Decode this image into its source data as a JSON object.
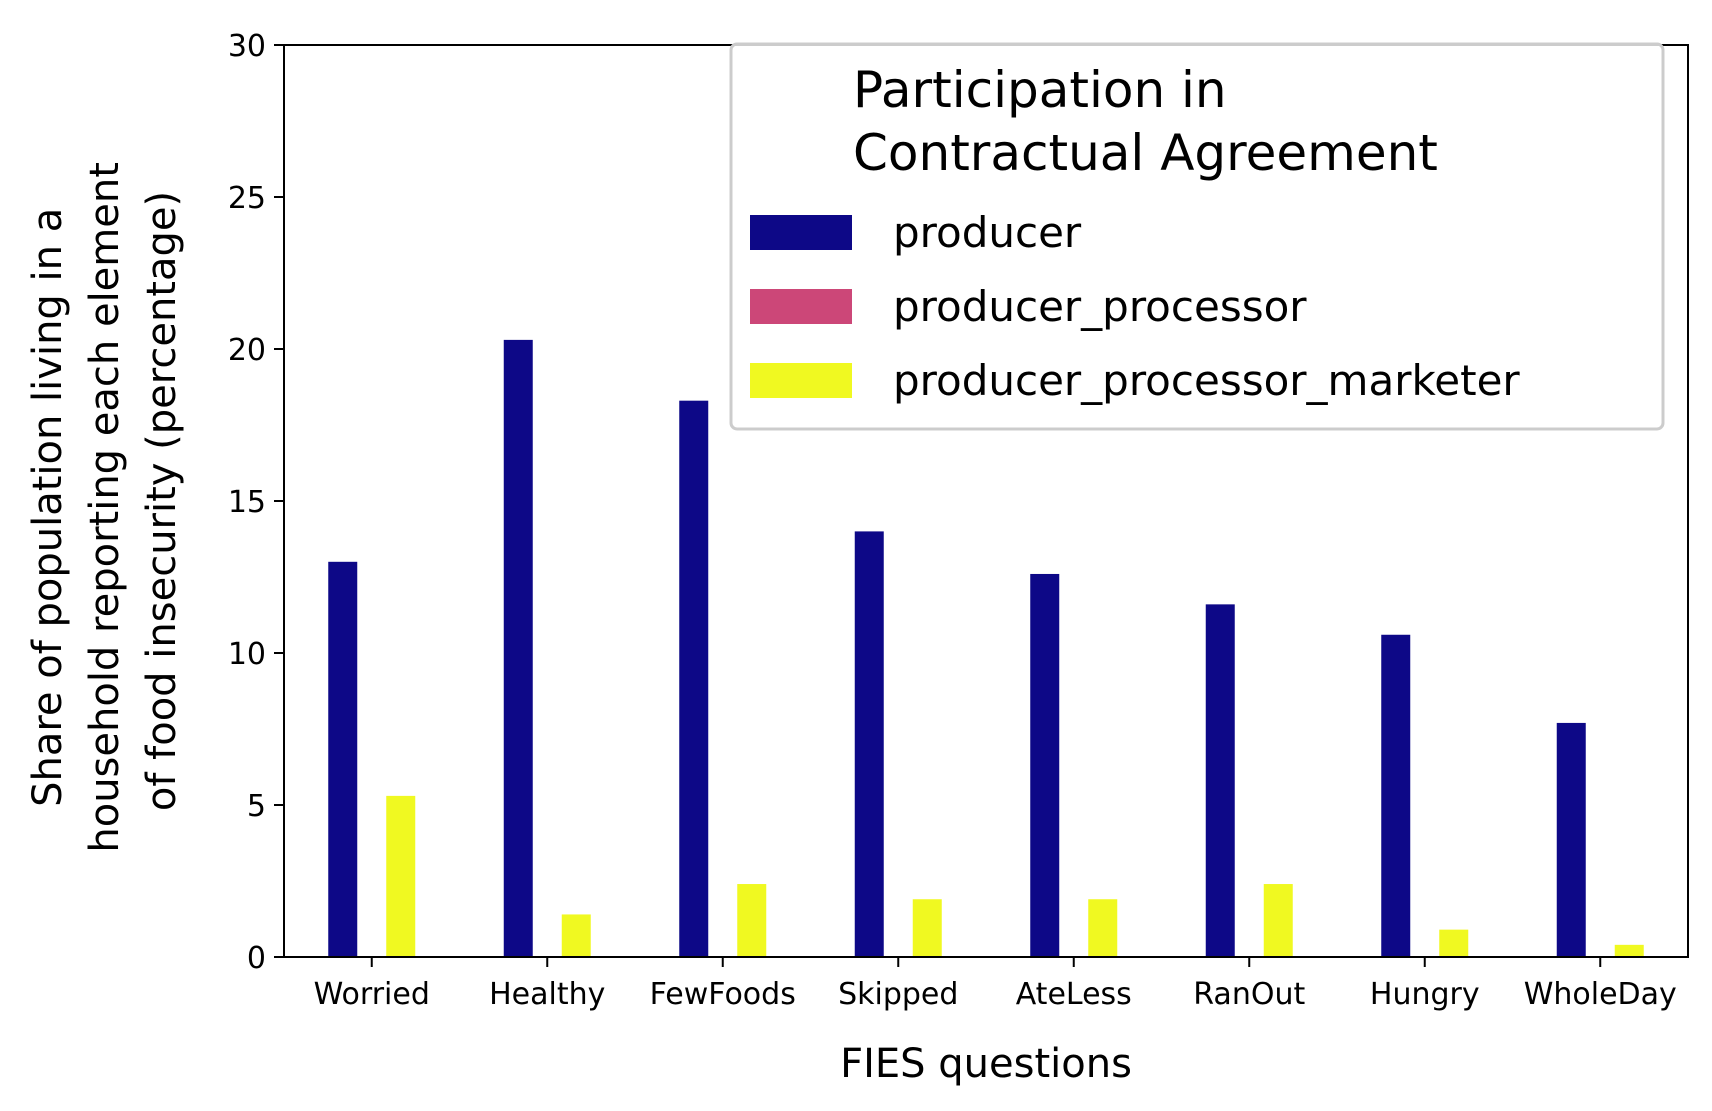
{
  "chart_data": {
    "type": "bar",
    "title": "",
    "xlabel": "FIES questions",
    "ylabel_lines": [
      "Share of population living in a",
      "household reporting each element",
      "of food insecurity (percentage)"
    ],
    "ylim": [
      0,
      30
    ],
    "yticks": [
      0,
      5,
      10,
      15,
      20,
      25,
      30
    ],
    "categories": [
      "Worried",
      "Healthy",
      "FewFoods",
      "Skipped",
      "AteLess",
      "RanOut",
      "Hungry",
      "WholeDay"
    ],
    "legend": {
      "title_lines": [
        "Participation in",
        "Contractual Agreement"
      ],
      "placement": "top-right"
    },
    "series": [
      {
        "name": "producer",
        "color": "#0d0887",
        "values": [
          13.0,
          20.3,
          18.3,
          14.0,
          12.6,
          11.6,
          10.6,
          7.7
        ]
      },
      {
        "name": "producer_processor",
        "color": "#cc4778",
        "values": [
          0,
          0,
          0,
          0,
          0,
          0,
          0,
          0
        ]
      },
      {
        "name": "producer_processor_marketer",
        "color": "#f0f921",
        "values": [
          5.3,
          1.4,
          2.4,
          1.9,
          1.9,
          2.4,
          0.9,
          0.4
        ]
      }
    ],
    "grid": false
  }
}
